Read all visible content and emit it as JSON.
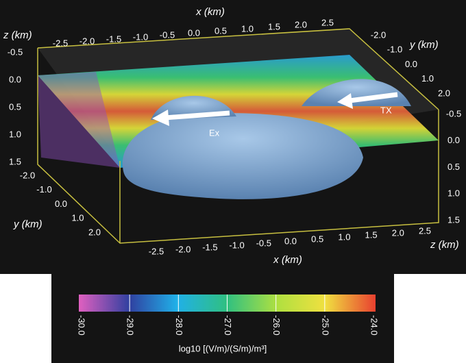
{
  "scene": {
    "top_x_axis": {
      "label": "x (km)",
      "ticks": [
        "-2.5",
        "-2.0",
        "-1.5",
        "-1.0",
        "-0.5",
        "0.0",
        "0.5",
        "1.0",
        "1.5",
        "2.0",
        "2.5"
      ]
    },
    "left_z_axis": {
      "label": "z (km)",
      "ticks": [
        "-0.5",
        "0.0",
        "0.5",
        "1.0",
        "1.5"
      ]
    },
    "right_y_axis": {
      "label": "y (km)",
      "ticks": [
        "-2.0",
        "-1.0",
        "0.0",
        "1.0",
        "2.0"
      ]
    },
    "right_z_axis": {
      "label": "z (km)",
      "ticks": [
        "-0.5",
        "0.0",
        "0.5",
        "1.0",
        "1.5"
      ]
    },
    "left_y_axis": {
      "label": "y (km)",
      "ticks": [
        "-2.0",
        "-1.0",
        "0.0",
        "1.0",
        "2.0"
      ]
    },
    "bottom_x_axis": {
      "label": "x (km)",
      "ticks": [
        "-2.5",
        "-2.0",
        "-1.5",
        "-1.0",
        "-0.5",
        "0.0",
        "0.5",
        "1.0",
        "1.5",
        "2.0",
        "2.5"
      ]
    },
    "annotations": [
      "Ex",
      "TX"
    ]
  },
  "colorbar": {
    "ticks": [
      "-30.0",
      "-29.0",
      "-28.0",
      "-27.0",
      "-26.0",
      "-25.0",
      "-24.0"
    ],
    "label": "log10 [(V/m)/(S/m)/m³]"
  }
}
